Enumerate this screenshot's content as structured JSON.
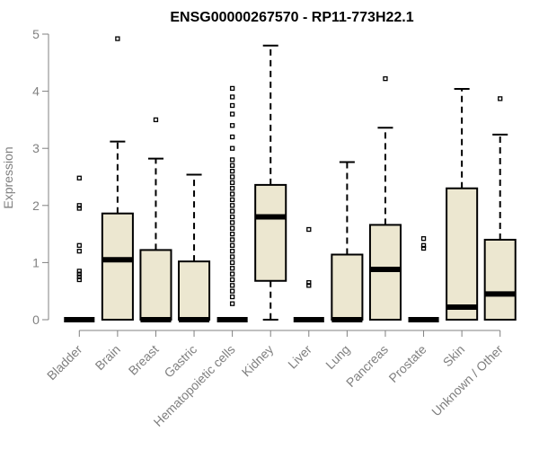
{
  "chart_data": {
    "type": "boxplot",
    "title": "ENSG00000267570 - RP11-773H22.1",
    "ylabel": "Expression",
    "xlabel": "",
    "ylim": [
      0,
      5
    ],
    "yticks": [
      "0",
      "1",
      "2",
      "3",
      "4",
      "5"
    ],
    "box_color": "#ece7d0",
    "categories": [
      "Bladder",
      "Brain",
      "Breast",
      "Gastric",
      "Hematopoietic cells",
      "Kidney",
      "Liver",
      "Lung",
      "Pancreas",
      "Prostate",
      "Skin",
      "Unknown / Other"
    ],
    "boxes": [
      {
        "q1": 0,
        "median": 0,
        "q3": 0,
        "whisker_low": 0,
        "whisker_high": 0,
        "outliers": [
          0.7,
          0.75,
          0.8,
          0.85,
          1.2,
          1.3,
          1.95,
          2.0,
          2.48
        ]
      },
      {
        "q1": 0,
        "median": 1.05,
        "q3": 1.86,
        "whisker_low": 0,
        "whisker_high": 3.12,
        "outliers": [
          4.92
        ]
      },
      {
        "q1": 0,
        "median": 0,
        "q3": 1.22,
        "whisker_low": 0,
        "whisker_high": 2.82,
        "outliers": [
          3.5
        ]
      },
      {
        "q1": 0,
        "median": 0,
        "q3": 1.02,
        "whisker_low": 0,
        "whisker_high": 2.54,
        "outliers": []
      },
      {
        "q1": 0,
        "median": 0,
        "q3": 0,
        "whisker_low": 0,
        "whisker_high": 0,
        "outliers": [
          0.28,
          0.4,
          0.5,
          0.6,
          0.7,
          0.8,
          0.9,
          1.0,
          1.1,
          1.2,
          1.3,
          1.4,
          1.5,
          1.6,
          1.7,
          1.8,
          1.9,
          2.0,
          2.1,
          2.2,
          2.3,
          2.4,
          2.5,
          2.6,
          2.7,
          2.8,
          3.0,
          3.2,
          3.4,
          3.6,
          3.75,
          3.9,
          4.05
        ]
      },
      {
        "q1": 0.68,
        "median": 1.8,
        "q3": 2.36,
        "whisker_low": 0,
        "whisker_high": 4.8,
        "outliers": []
      },
      {
        "q1": 0,
        "median": 0,
        "q3": 0,
        "whisker_low": 0,
        "whisker_high": 0,
        "outliers": [
          0.6,
          0.65,
          1.58
        ]
      },
      {
        "q1": 0,
        "median": 0,
        "q3": 1.14,
        "whisker_low": 0,
        "whisker_high": 2.76,
        "outliers": []
      },
      {
        "q1": 0,
        "median": 0.88,
        "q3": 1.66,
        "whisker_low": 0,
        "whisker_high": 3.36,
        "outliers": [
          4.22
        ]
      },
      {
        "q1": 0,
        "median": 0,
        "q3": 0,
        "whisker_low": 0,
        "whisker_high": 0,
        "outliers": [
          1.25,
          1.3,
          1.42
        ]
      },
      {
        "q1": 0,
        "median": 0.22,
        "q3": 2.3,
        "whisker_low": 0,
        "whisker_high": 4.04,
        "outliers": []
      },
      {
        "q1": 0,
        "median": 0.45,
        "q3": 1.4,
        "whisker_low": 0,
        "whisker_high": 3.24,
        "outliers": [
          3.87
        ]
      }
    ]
  }
}
